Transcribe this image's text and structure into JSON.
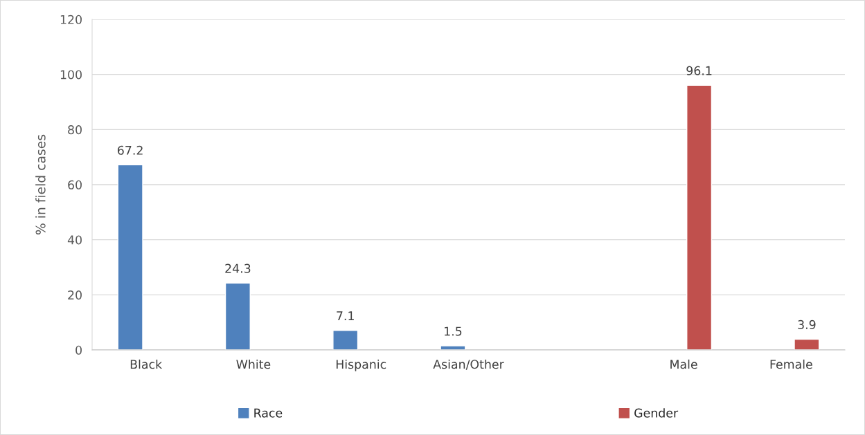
{
  "chart_data": {
    "type": "bar",
    "ylabel": "% in field cases",
    "categories": [
      "Black",
      "White",
      "Hispanic",
      "Asian/Other",
      null,
      "Male",
      "Female"
    ],
    "series": [
      {
        "name": "Race",
        "color": "#4f81bd",
        "values": [
          67.2,
          24.3,
          7.1,
          1.5,
          null,
          null,
          null
        ]
      },
      {
        "name": "Gender",
        "color": "#c0504d",
        "values": [
          null,
          null,
          null,
          null,
          null,
          96.1,
          3.9
        ]
      }
    ],
    "ylim": [
      0,
      120
    ],
    "yticks": [
      0,
      20,
      40,
      60,
      80,
      100,
      120
    ],
    "grid": "y",
    "legend": "bottom",
    "data_labels": true
  }
}
